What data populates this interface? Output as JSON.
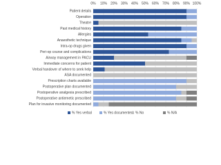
{
  "chart_data": {
    "type": "stacked-barh",
    "categories": [
      "Patient details",
      "Operation",
      "Theatre",
      "Past medical history",
      "Allergies",
      "Anaesthetic technique",
      "Intra-op drugs given",
      "Peri-op course and complications",
      "Airway management in PACU",
      "Immediate concerns for patient",
      "Verbal handover of where to seek help",
      "ASA documented",
      "Prescription charts available",
      "Postoperative plan documented",
      "Postoperative analgesia prescribed",
      "Postoperative antiemetic prescribed",
      "Plan for invasive monitoring documented"
    ],
    "series": [
      {
        "name": "% Yes verbal",
        "color": "#2e5597",
        "values": [
          90,
          90,
          5,
          85,
          53,
          85,
          90,
          73,
          20,
          50,
          11,
          0,
          0,
          0,
          0,
          0,
          0
        ]
      },
      {
        "name": "% Yes documented",
        "color": "#8faadc",
        "values": [
          10,
          10,
          0,
          15,
          47,
          10,
          10,
          27,
          0,
          0,
          0,
          0,
          90,
          80,
          85,
          80,
          5
        ]
      },
      {
        "name": "% No",
        "color": "#bfbfbf",
        "values": [
          0,
          0,
          95,
          0,
          0,
          5,
          0,
          0,
          70,
          50,
          89,
          100,
          10,
          20,
          5,
          10,
          10
        ]
      },
      {
        "name": "% N/A",
        "color": "#7f7f7f",
        "values": [
          0,
          0,
          0,
          0,
          0,
          0,
          0,
          0,
          10,
          0,
          0,
          0,
          0,
          0,
          10,
          10,
          85
        ]
      }
    ],
    "xlim": [
      0,
      100
    ],
    "xticks": [
      {
        "value": 0,
        "label": "0%"
      },
      {
        "value": 10,
        "label": "10%"
      },
      {
        "value": 20,
        "label": "20%"
      },
      {
        "value": 30,
        "label": "30%"
      },
      {
        "value": 40,
        "label": "40%"
      },
      {
        "value": 50,
        "label": "50%"
      },
      {
        "value": 60,
        "label": "60%"
      },
      {
        "value": 70,
        "label": "70%"
      },
      {
        "value": 80,
        "label": "80%"
      },
      {
        "value": 90,
        "label": "90%"
      },
      {
        "value": 100,
        "label": "100%"
      }
    ],
    "grid": true,
    "legend": "bottom"
  }
}
